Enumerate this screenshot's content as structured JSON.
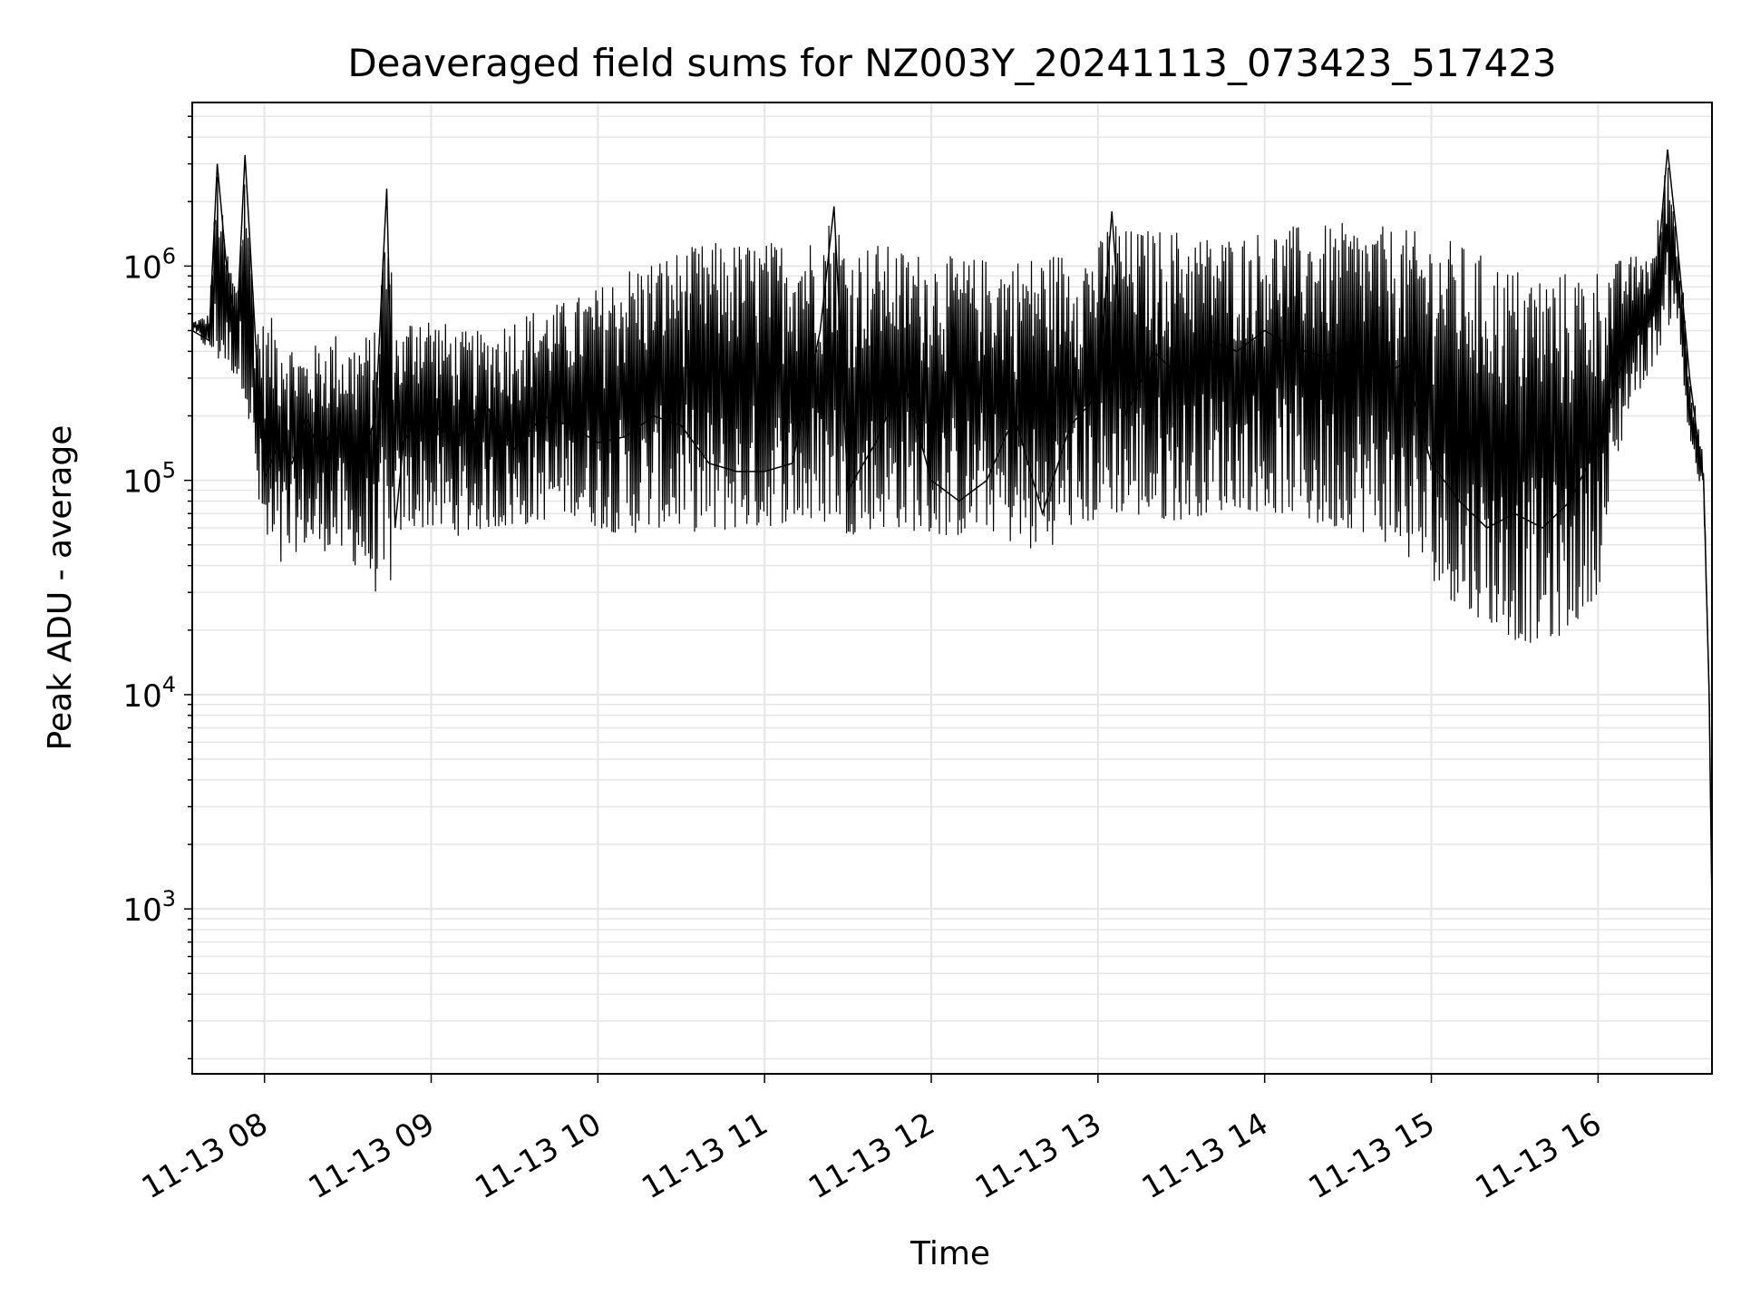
{
  "chart_data": {
    "type": "line",
    "title": "Deaveraged field sums for NZ003Y_20241113_073423_517423",
    "xlabel": "Time",
    "ylabel": "Peak ADU - average",
    "yscale": "log",
    "ylim": [
      170,
      5800000
    ],
    "xlim": [
      "2024-11-13 07:34",
      "2024-11-13 16:41"
    ],
    "grid": true,
    "x_tick_labels": [
      "11-13 08",
      "11-13 09",
      "11-13 10",
      "11-13 11",
      "11-13 12",
      "11-13 13",
      "11-13 14",
      "11-13 15",
      "11-13 16"
    ],
    "x_ticks": [
      "2024-11-13 08:00",
      "2024-11-13 09:00",
      "2024-11-13 10:00",
      "2024-11-13 11:00",
      "2024-11-13 12:00",
      "2024-11-13 13:00",
      "2024-11-13 14:00",
      "2024-11-13 15:00",
      "2024-11-13 16:00"
    ],
    "y_ticks": [
      {
        "value": 1000,
        "base": "10",
        "exp": "3"
      },
      {
        "value": 10000,
        "base": "10",
        "exp": "4"
      },
      {
        "value": 100000,
        "base": "10",
        "exp": "5"
      },
      {
        "value": 1000000,
        "base": "10",
        "exp": "6"
      }
    ],
    "series": [
      {
        "color": "#000000",
        "x": [
          "2024-11-13 07:34",
          "2024-11-13 07:40",
          "2024-11-13 07:43",
          "2024-11-13 07:46",
          "2024-11-13 07:50",
          "2024-11-13 07:53",
          "2024-11-13 07:57",
          "2024-11-13 08:00",
          "2024-11-13 08:05",
          "2024-11-13 08:10",
          "2024-11-13 08:15",
          "2024-11-13 08:20",
          "2024-11-13 08:25",
          "2024-11-13 08:30",
          "2024-11-13 08:35",
          "2024-11-13 08:40",
          "2024-11-13 08:44",
          "2024-11-13 08:47",
          "2024-11-13 08:50",
          "2024-11-13 08:55",
          "2024-11-13 09:00",
          "2024-11-13 09:10",
          "2024-11-13 09:20",
          "2024-11-13 09:30",
          "2024-11-13 09:40",
          "2024-11-13 09:50",
          "2024-11-13 10:00",
          "2024-11-13 10:10",
          "2024-11-13 10:20",
          "2024-11-13 10:30",
          "2024-11-13 10:40",
          "2024-11-13 10:50",
          "2024-11-13 11:00",
          "2024-11-13 11:10",
          "2024-11-13 11:20",
          "2024-11-13 11:25",
          "2024-11-13 11:30",
          "2024-11-13 11:40",
          "2024-11-13 11:50",
          "2024-11-13 12:00",
          "2024-11-13 12:10",
          "2024-11-13 12:20",
          "2024-11-13 12:30",
          "2024-11-13 12:40",
          "2024-11-13 12:50",
          "2024-11-13 13:00",
          "2024-11-13 13:05",
          "2024-11-13 13:10",
          "2024-11-13 13:20",
          "2024-11-13 13:30",
          "2024-11-13 13:40",
          "2024-11-13 13:50",
          "2024-11-13 14:00",
          "2024-11-13 14:10",
          "2024-11-13 14:20",
          "2024-11-13 14:30",
          "2024-11-13 14:40",
          "2024-11-13 14:50",
          "2024-11-13 15:00",
          "2024-11-13 15:10",
          "2024-11-13 15:20",
          "2024-11-13 15:30",
          "2024-11-13 15:40",
          "2024-11-13 15:50",
          "2024-11-13 16:00",
          "2024-11-13 16:10",
          "2024-11-13 16:20",
          "2024-11-13 16:25",
          "2024-11-13 16:28",
          "2024-11-13 16:30",
          "2024-11-13 16:33",
          "2024-11-13 16:36",
          "2024-11-13 16:38",
          "2024-11-13 16:40",
          "2024-11-13 16:41"
        ],
        "y": [
          500000,
          450000,
          3000000,
          1100000,
          500000,
          3300000,
          400000,
          100000,
          150000,
          120000,
          200000,
          130000,
          180000,
          150000,
          120000,
          200000,
          2300000,
          60000,
          150000,
          200000,
          180000,
          160000,
          220000,
          140000,
          200000,
          180000,
          150000,
          160000,
          200000,
          180000,
          120000,
          110000,
          110000,
          120000,
          500000,
          1900000,
          90000,
          150000,
          300000,
          100000,
          80000,
          100000,
          200000,
          70000,
          180000,
          250000,
          1800000,
          200000,
          400000,
          300000,
          450000,
          400000,
          500000,
          420000,
          380000,
          400000,
          300000,
          350000,
          120000,
          80000,
          60000,
          70000,
          60000,
          80000,
          150000,
          400000,
          600000,
          3500000,
          1500000,
          800000,
          300000,
          150000,
          100000,
          10000,
          1000
        ],
        "lower_envelope": [
          500000,
          400000,
          350000,
          350000,
          300000,
          250000,
          90000,
          45000,
          35000,
          45000,
          50000,
          45000,
          50000,
          40000,
          40000,
          30000,
          23000,
          50000,
          60000,
          60000,
          60000,
          55000,
          60000,
          60000,
          65000,
          70000,
          60000,
          55000,
          60000,
          60000,
          55000,
          60000,
          60000,
          65000,
          60000,
          70000,
          55000,
          60000,
          60000,
          55000,
          55000,
          60000,
          50000,
          45000,
          60000,
          65000,
          70000,
          70000,
          65000,
          65000,
          70000,
          75000,
          70000,
          70000,
          60000,
          60000,
          55000,
          45000,
          35000,
          25000,
          22000,
          18000,
          17000,
          20000,
          30000,
          200000,
          350000,
          500000,
          700000,
          300000,
          150000,
          100000,
          80000,
          10000,
          1000
        ],
        "upper_envelope": [
          550000,
          600000,
          3000000,
          1300000,
          800000,
          3300000,
          600000,
          550000,
          600000,
          450000,
          400000,
          450000,
          500000,
          450000,
          480000,
          500000,
          2300000,
          550000,
          500000,
          700000,
          600000,
          500000,
          500000,
          600000,
          650000,
          700000,
          800000,
          1000000,
          1100000,
          1200000,
          1300000,
          1300000,
          1300000,
          1350000,
          1400000,
          1900000,
          1200000,
          1300000,
          1200000,
          1150000,
          1100000,
          1100000,
          1100000,
          1150000,
          1200000,
          1250000,
          1800000,
          1500000,
          1500000,
          1500000,
          1400000,
          1400000,
          1500000,
          1550000,
          1550000,
          1600000,
          1550000,
          1500000,
          1400000,
          1300000,
          1100000,
          1000000,
          950000,
          950000,
          1000000,
          1100000,
          1200000,
          3500000,
          1600000,
          1000000,
          350000,
          200000,
          120000,
          10000,
          1000
        ]
      }
    ]
  }
}
